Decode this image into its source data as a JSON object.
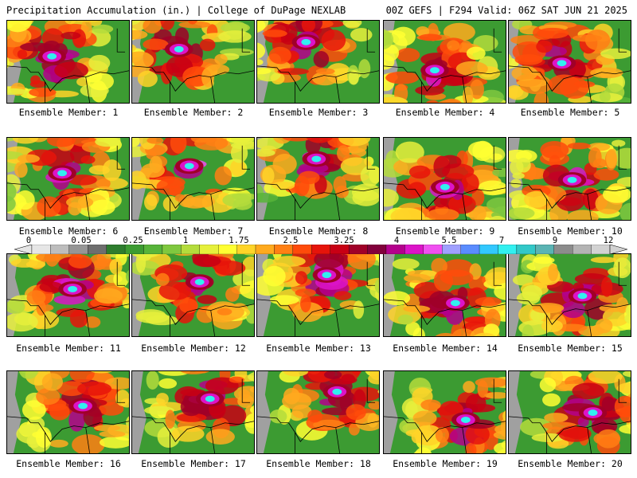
{
  "header": {
    "left_title": "Precipitation Accumulation (in.) | College of DuPage NEXLAB",
    "right_title": "00Z GEFS | F294 Valid: 06Z SAT JUN 21 2025"
  },
  "panels": [
    {
      "label": "Ensemble Member: 1"
    },
    {
      "label": "Ensemble Member: 2"
    },
    {
      "label": "Ensemble Member: 3"
    },
    {
      "label": "Ensemble Member: 4"
    },
    {
      "label": "Ensemble Member: 5"
    },
    {
      "label": "Ensemble Member: 6"
    },
    {
      "label": "Ensemble Member: 7"
    },
    {
      "label": "Ensemble Member: 8"
    },
    {
      "label": "Ensemble Member: 9"
    },
    {
      "label": "Ensemble Member: 10"
    },
    {
      "label": "Ensemble Member: 11"
    },
    {
      "label": "Ensemble Member: 12"
    },
    {
      "label": "Ensemble Member: 13"
    },
    {
      "label": "Ensemble Member: 14"
    },
    {
      "label": "Ensemble Member: 15"
    },
    {
      "label": "Ensemble Member: 16"
    },
    {
      "label": "Ensemble Member: 17"
    },
    {
      "label": "Ensemble Member: 18"
    },
    {
      "label": "Ensemble Member: 19"
    },
    {
      "label": "Ensemble Member: 20"
    }
  ],
  "colorbar": {
    "tick_labels": [
      "0",
      "0.05",
      "0.25",
      "1",
      "1.75",
      "2.5",
      "3.25",
      "4",
      "5.5",
      "7",
      "9",
      "12"
    ],
    "colors": [
      "#e6e6e6",
      "#bdbdbd",
      "#969696",
      "#6e6e6e",
      "#2e7d2e",
      "#3c9b32",
      "#57b43a",
      "#7fc83f",
      "#b4dc3c",
      "#e6f03c",
      "#ffff32",
      "#ffd428",
      "#ffaa1e",
      "#ff7f14",
      "#ff4b0a",
      "#e6140a",
      "#c80014",
      "#a00028",
      "#82003c",
      "#b4008c",
      "#dc14c8",
      "#f050f0",
      "#a0a0ff",
      "#5a8cff",
      "#32c8ff",
      "#32f0f0",
      "#32c8c8",
      "#5ab4b4",
      "#8c8c8c",
      "#b4b4b4",
      "#d2d2d2"
    ]
  }
}
